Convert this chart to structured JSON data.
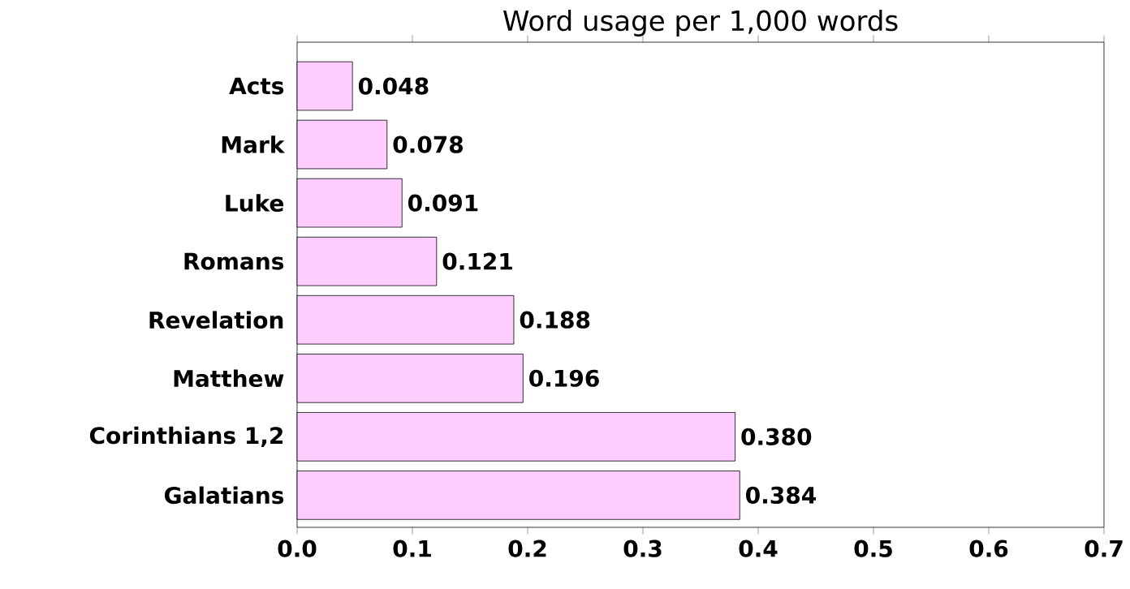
{
  "chart_data": {
    "type": "bar",
    "orientation": "horizontal",
    "title": "Word usage per 1,000 words",
    "categories": [
      "Acts",
      "Mark",
      "Luke",
      "Romans",
      "Revelation",
      "Matthew",
      "Corinthians 1,2",
      "Galatians"
    ],
    "values": [
      0.048,
      0.078,
      0.091,
      0.121,
      0.188,
      0.196,
      0.38,
      0.384
    ],
    "value_labels": [
      "0.048",
      "0.078",
      "0.091",
      "0.121",
      "0.188",
      "0.196",
      "0.380",
      "0.384"
    ],
    "color": "#ffccff",
    "xlim": [
      0,
      0.7
    ],
    "xticks": [
      {
        "value": 0,
        "label": "0.0"
      },
      0.1,
      0.2,
      0.3,
      0.4,
      0.5,
      0.6,
      0.7
    ]
  }
}
